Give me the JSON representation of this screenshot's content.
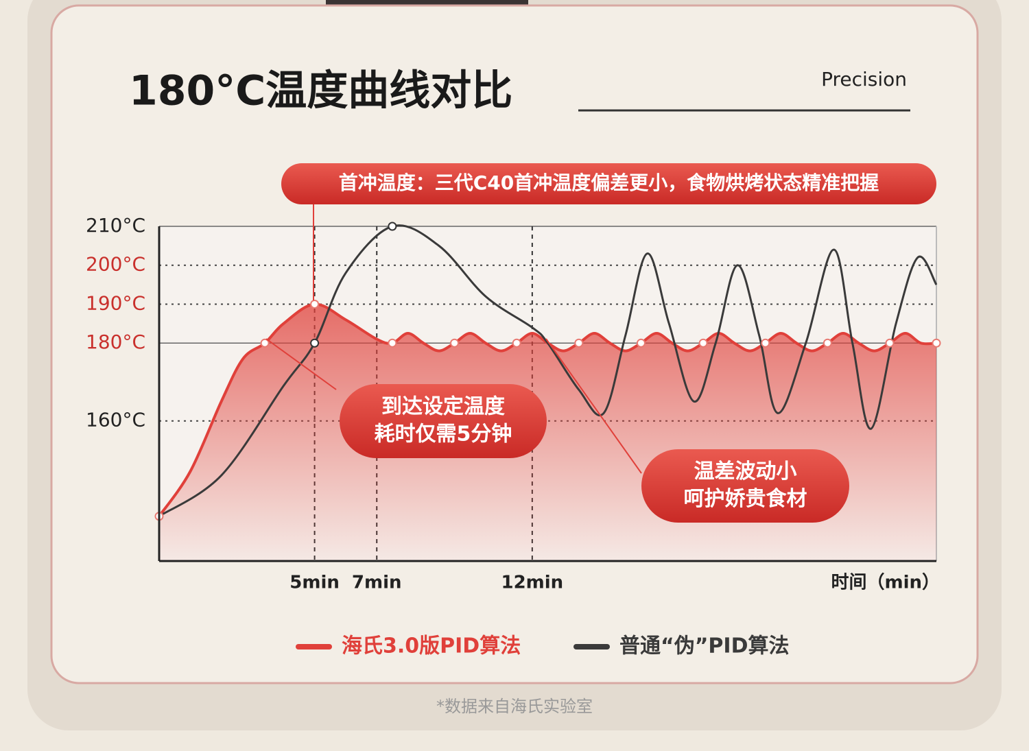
{
  "chart_data": {
    "type": "line",
    "title": "180°C温度曲线对比",
    "subtitle": "Precision",
    "annotations": [
      [
        "首冲温度：三代C40首冲温度偏差更小，食物烘烤状态精准把握"
      ],
      [
        "到达设定温度",
        "耗时仅需5分钟"
      ],
      [
        "温差波动小",
        "呵护娇贵食材"
      ]
    ],
    "x_label": "时间（min）",
    "xlim": [
      0,
      25
    ],
    "xticks": [
      {
        "value": 5,
        "label": "5min"
      },
      {
        "value": 7,
        "label": "7min"
      },
      {
        "value": 12,
        "label": "12min"
      }
    ],
    "ylim": [
      124,
      210
    ],
    "yticks": [
      {
        "value": 210,
        "label": "210°C",
        "color": "#222222"
      },
      {
        "value": 200,
        "label": "200°C",
        "color": "#c9302c"
      },
      {
        "value": 190,
        "label": "190°C",
        "color": "#c9302c"
      },
      {
        "value": 180,
        "label": "180°C",
        "color": "#c9302c"
      },
      {
        "value": 160,
        "label": "160°C",
        "color": "#222222"
      }
    ],
    "grid": true,
    "series": [
      {
        "name": "海氏3.0版PID算法",
        "color": "#e0403a",
        "x": [
          0,
          1,
          2,
          2.7,
          3.4,
          4,
          5,
          6,
          7,
          7.5,
          8,
          8.5,
          9,
          9.5,
          10,
          10.5,
          11,
          11.5,
          12,
          12.5,
          13,
          13.5,
          14,
          14.5,
          15,
          15.5,
          16,
          16.5,
          17,
          17.5,
          18,
          18.5,
          19,
          19.5,
          20,
          20.5,
          21,
          21.5,
          22,
          22.5,
          23,
          23.5,
          24,
          24.5,
          25
        ],
        "values": [
          135.5,
          147,
          165,
          176,
          180,
          185,
          190,
          186,
          181,
          180,
          182.5,
          180,
          178,
          180,
          182.5,
          180,
          178,
          180,
          182.5,
          180,
          178,
          180,
          182.5,
          180,
          178,
          180,
          182.5,
          180,
          178,
          180,
          182.5,
          180,
          178,
          180,
          182.5,
          180,
          178,
          180,
          182.5,
          180,
          178,
          180,
          182.5,
          180,
          180
        ]
      },
      {
        "name": "普通“伪”PID算法",
        "color": "#3a3a3a",
        "x": [
          0,
          2,
          4,
          5,
          6,
          7.5,
          9,
          10.5,
          12,
          12.5,
          13.5,
          14.3,
          15,
          15.7,
          16.4,
          17.2,
          17.9,
          18.6,
          19.3,
          19.9,
          20.8,
          21.7,
          22.3,
          22.9,
          23.7,
          24.4,
          25
        ],
        "values": [
          135.5,
          146,
          169,
          180,
          198,
          210,
          205,
          192,
          184,
          180,
          168,
          162,
          182,
          203,
          185,
          165,
          180,
          200,
          182,
          162,
          180,
          204,
          180,
          158,
          185,
          202,
          195
        ]
      }
    ],
    "footnote": "*数据来自海氏实验室"
  }
}
